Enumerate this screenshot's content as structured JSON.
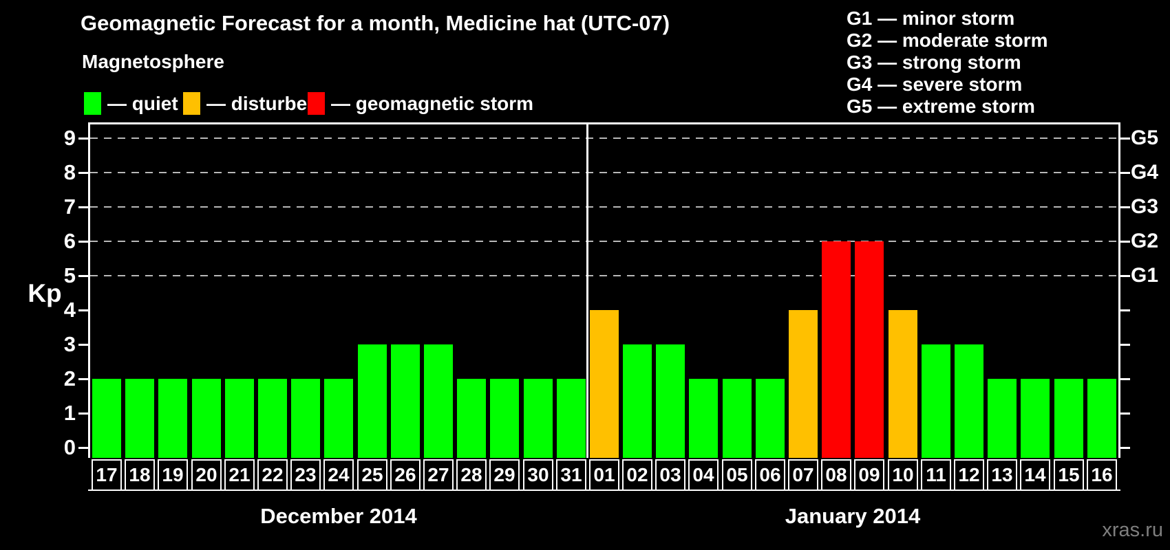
{
  "title": "Geomagnetic Forecast for a month, Medicine hat (UTC-07)",
  "watermark": "xras.ru",
  "legend": {
    "heading": "Magnetosphere",
    "separator": "—",
    "items": [
      {
        "key": "quiet",
        "label": "quiet",
        "color": "#00ff00"
      },
      {
        "key": "disturbed",
        "label": "disturbed",
        "color": "#ffc000"
      },
      {
        "key": "storm",
        "label": "geomagnetic storm",
        "color": "#ff0000"
      }
    ]
  },
  "storm_scale": [
    {
      "code": "G1",
      "label": "minor storm"
    },
    {
      "code": "G2",
      "label": "moderate storm"
    },
    {
      "code": "G3",
      "label": "strong storm"
    },
    {
      "code": "G4",
      "label": "severe storm"
    },
    {
      "code": "G5",
      "label": "extreme storm"
    }
  ],
  "chart_data": {
    "type": "bar",
    "ylabel": "Kp",
    "ylim": [
      -0.3,
      9.4
    ],
    "yticks": [
      0,
      1,
      2,
      3,
      4,
      5,
      6,
      7,
      8,
      9
    ],
    "grid_levels": [
      5,
      6,
      7,
      8,
      9
    ],
    "grid_style": "dashed",
    "right_axis_labels": [
      {
        "kp": 5,
        "label": "G1"
      },
      {
        "kp": 6,
        "label": "G2"
      },
      {
        "kp": 7,
        "label": "G3"
      },
      {
        "kp": 8,
        "label": "G4"
      },
      {
        "kp": 9,
        "label": "G5"
      }
    ],
    "months": [
      {
        "label": "December 2014",
        "days": 15
      },
      {
        "label": "January 2014",
        "days": 16
      }
    ],
    "categories": [
      "17",
      "18",
      "19",
      "20",
      "21",
      "22",
      "23",
      "24",
      "25",
      "26",
      "27",
      "28",
      "29",
      "30",
      "31",
      "01",
      "02",
      "03",
      "04",
      "05",
      "06",
      "07",
      "08",
      "09",
      "10",
      "11",
      "12",
      "13",
      "14",
      "15",
      "16"
    ],
    "values": [
      2,
      2,
      2,
      2,
      2,
      2,
      2,
      2,
      3,
      3,
      3,
      2,
      2,
      2,
      2,
      4,
      3,
      3,
      2,
      2,
      2,
      4,
      6,
      6,
      4,
      3,
      3,
      2,
      2,
      2,
      2
    ],
    "statuses": [
      "quiet",
      "quiet",
      "quiet",
      "quiet",
      "quiet",
      "quiet",
      "quiet",
      "quiet",
      "quiet",
      "quiet",
      "quiet",
      "quiet",
      "quiet",
      "quiet",
      "quiet",
      "disturbed",
      "quiet",
      "quiet",
      "quiet",
      "quiet",
      "quiet",
      "disturbed",
      "storm",
      "storm",
      "disturbed",
      "quiet",
      "quiet",
      "quiet",
      "quiet",
      "quiet",
      "quiet"
    ]
  }
}
